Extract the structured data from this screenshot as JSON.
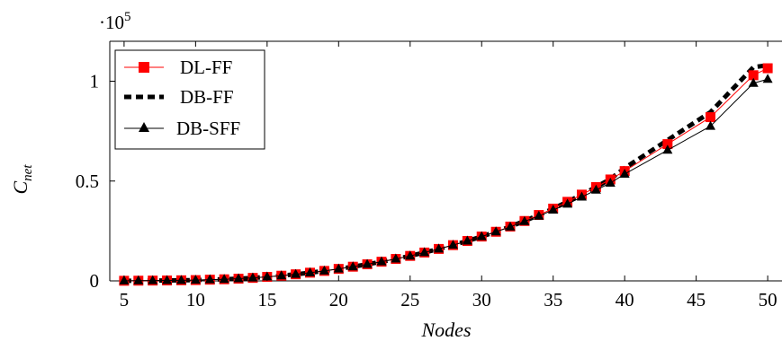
{
  "chart_data": {
    "type": "line",
    "title": "",
    "xlabel": "Nodes",
    "ylabel": "C",
    "ylabel_subscript": "net",
    "y_multiplier": {
      "base": "·10",
      "exponent": "5"
    },
    "xlim": [
      4,
      51
    ],
    "ylim": [
      0,
      1.2
    ],
    "xticks": [
      5,
      10,
      15,
      20,
      25,
      30,
      35,
      40,
      45,
      50
    ],
    "yticks": [
      0,
      0.5,
      1
    ],
    "ytick_labels": [
      "0",
      "0.5",
      "1"
    ],
    "grid": false,
    "legend_position": "top-left",
    "x": [
      5,
      6,
      7,
      8,
      9,
      10,
      11,
      12,
      13,
      14,
      15,
      16,
      17,
      18,
      19,
      20,
      21,
      22,
      23,
      24,
      25,
      26,
      27,
      28,
      29,
      30,
      31,
      32,
      33,
      34,
      35,
      36,
      37,
      38,
      39,
      40,
      43,
      46,
      49,
      50
    ],
    "series": [
      {
        "name": "DL-FF",
        "color": "#ff0000",
        "marker": "square",
        "line_style": "solid",
        "values": [
          0.0005,
          0.001,
          0.0015,
          0.002,
          0.003,
          0.004,
          0.006,
          0.008,
          0.011,
          0.015,
          0.02,
          0.026,
          0.033,
          0.041,
          0.05,
          0.06,
          0.071,
          0.083,
          0.096,
          0.11,
          0.125,
          0.142,
          0.16,
          0.179,
          0.2,
          0.222,
          0.246,
          0.272,
          0.3,
          0.33,
          0.362,
          0.396,
          0.432,
          0.47,
          0.508,
          0.55,
          0.685,
          0.82,
          1.03,
          1.065
        ]
      },
      {
        "name": "DB-FF",
        "color": "#000000",
        "marker": "none",
        "line_style": "dashed",
        "values": [
          0.0005,
          0.001,
          0.0015,
          0.002,
          0.003,
          0.004,
          0.006,
          0.008,
          0.011,
          0.015,
          0.02,
          0.026,
          0.033,
          0.041,
          0.05,
          0.06,
          0.071,
          0.083,
          0.096,
          0.11,
          0.125,
          0.142,
          0.16,
          0.179,
          0.2,
          0.222,
          0.246,
          0.272,
          0.3,
          0.33,
          0.362,
          0.396,
          0.432,
          0.47,
          0.51,
          0.565,
          0.705,
          0.845,
          1.07,
          1.08
        ]
      },
      {
        "name": "DB-SFF",
        "color": "#000000",
        "marker": "triangle",
        "line_style": "solid",
        "values": [
          0.0005,
          0.001,
          0.0015,
          0.002,
          0.003,
          0.004,
          0.006,
          0.008,
          0.011,
          0.015,
          0.02,
          0.026,
          0.033,
          0.041,
          0.05,
          0.06,
          0.071,
          0.083,
          0.096,
          0.11,
          0.125,
          0.142,
          0.16,
          0.179,
          0.2,
          0.222,
          0.246,
          0.27,
          0.298,
          0.325,
          0.355,
          0.385,
          0.42,
          0.455,
          0.49,
          0.535,
          0.655,
          0.775,
          0.99,
          1.01
        ]
      }
    ]
  }
}
